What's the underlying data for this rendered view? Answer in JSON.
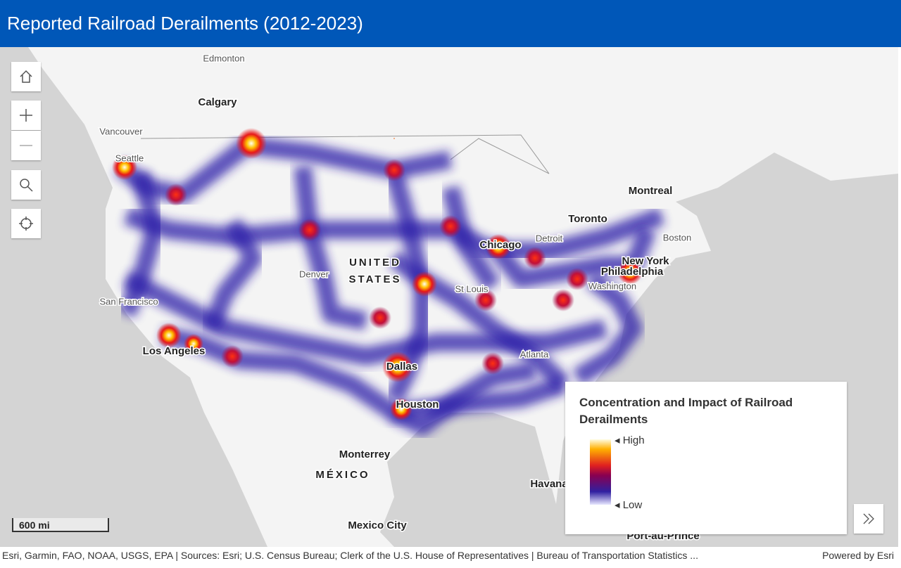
{
  "header": {
    "title": "Reported Railroad Derailments (2012-2023)"
  },
  "map": {
    "labels": [
      "Edmonton",
      "Calgary",
      "Vancouver",
      "Seattle",
      "Montreal",
      "Toronto",
      "Detroit",
      "Boston",
      "Chicago",
      "New York",
      "Philadelphia",
      "Washington",
      "Denver",
      "UNITED",
      "STATES",
      "St Louis",
      "San Francisco",
      "Los Angeles",
      "Dallas",
      "Houston",
      "Atlanta",
      "Monterrey",
      "MÉXICO",
      "Mexico City",
      "Havana",
      "Port-au-Prince"
    ]
  },
  "scale_bar": {
    "label": "600 mi"
  },
  "legend": {
    "title": "Concentration and Impact of Railroad Derailments",
    "high": "High",
    "low": "Low"
  },
  "attribution": {
    "sources": "Esri, Garmin, FAO, NOAA, USGS, EPA | Sources: Esri; U.S. Census Bureau; Clerk of the U.S. House of Representatives | Bureau of Transportation Statistics ...",
    "powered_by": "Powered by Esri"
  }
}
